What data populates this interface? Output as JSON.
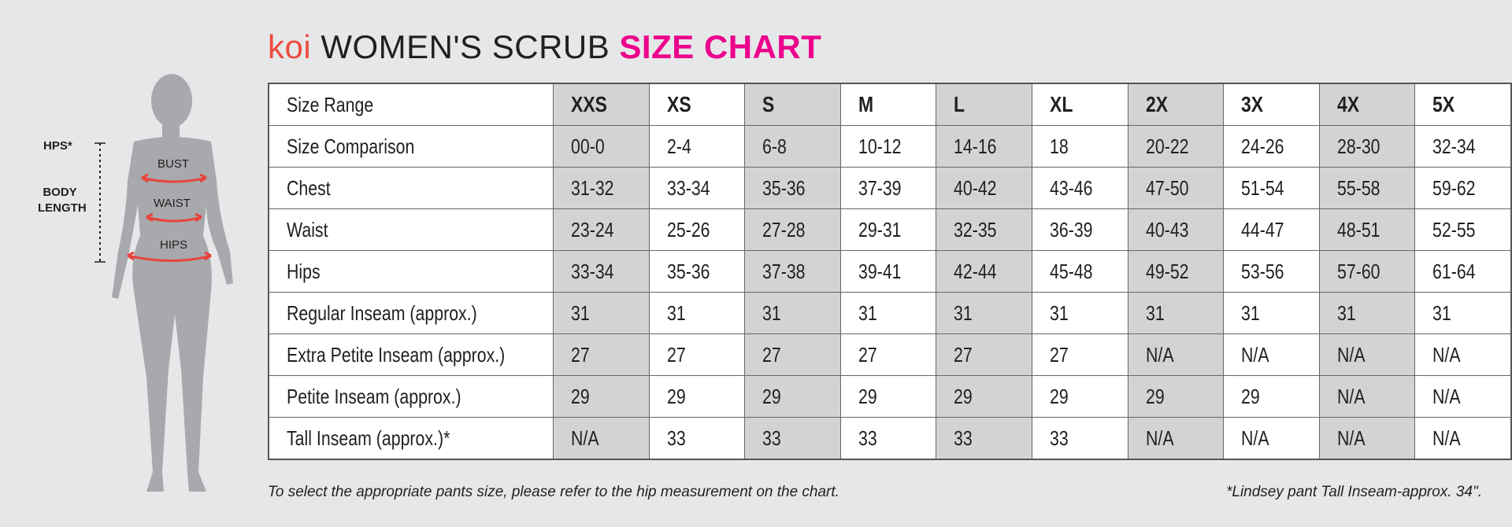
{
  "title": {
    "brand": "koi",
    "main": "WOMEN'S SCRUB",
    "accent": "SIZE CHART"
  },
  "figure": {
    "hps_label": "HPS*",
    "body_length_label": "BODY LENGTH",
    "bust_label": "BUST",
    "waist_label": "WAIST",
    "hips_label": "HIPS"
  },
  "colors": {
    "brand": "#ef4b3f",
    "accent": "#ec008c",
    "shade": "#d2d3d5",
    "measure_arrow": "#e8453c"
  },
  "table": {
    "shaded_columns": [
      0,
      2,
      4,
      6,
      8
    ],
    "rows": [
      {
        "label": "Size Range",
        "values": [
          "XXS",
          "XS",
          "S",
          "M",
          "L",
          "XL",
          "2X",
          "3X",
          "4X",
          "5X"
        ]
      },
      {
        "label": "Size Comparison",
        "values": [
          "00-0",
          "2-4",
          "6-8",
          "10-12",
          "14-16",
          "18",
          "20-22",
          "24-26",
          "28-30",
          "32-34"
        ]
      },
      {
        "label": "Chest",
        "values": [
          "31-32",
          "33-34",
          "35-36",
          "37-39",
          "40-42",
          "43-46",
          "47-50",
          "51-54",
          "55-58",
          "59-62"
        ]
      },
      {
        "label": "Waist",
        "values": [
          "23-24",
          "25-26",
          "27-28",
          "29-31",
          "32-35",
          "36-39",
          "40-43",
          "44-47",
          "48-51",
          "52-55"
        ]
      },
      {
        "label": "Hips",
        "values": [
          "33-34",
          "35-36",
          "37-38",
          "39-41",
          "42-44",
          "45-48",
          "49-52",
          "53-56",
          "57-60",
          "61-64"
        ]
      },
      {
        "label": "Regular Inseam (approx.)",
        "values": [
          "31",
          "31",
          "31",
          "31",
          "31",
          "31",
          "31",
          "31",
          "31",
          "31"
        ]
      },
      {
        "label": "Extra Petite Inseam (approx.)",
        "values": [
          "27",
          "27",
          "27",
          "27",
          "27",
          "27",
          "N/A",
          "N/A",
          "N/A",
          "N/A"
        ]
      },
      {
        "label": "Petite Inseam (approx.)",
        "values": [
          "29",
          "29",
          "29",
          "29",
          "29",
          "29",
          "29",
          "29",
          "N/A",
          "N/A"
        ]
      },
      {
        "label": "Tall Inseam (approx.)*",
        "values": [
          "N/A",
          "33",
          "33",
          "33",
          "33",
          "33",
          "N/A",
          "N/A",
          "N/A",
          "N/A"
        ]
      }
    ]
  },
  "footer": {
    "left": "To select the appropriate pants size, please refer to the hip measurement on the chart.",
    "right": "*Lindsey pant Tall Inseam-approx. 34\"."
  }
}
